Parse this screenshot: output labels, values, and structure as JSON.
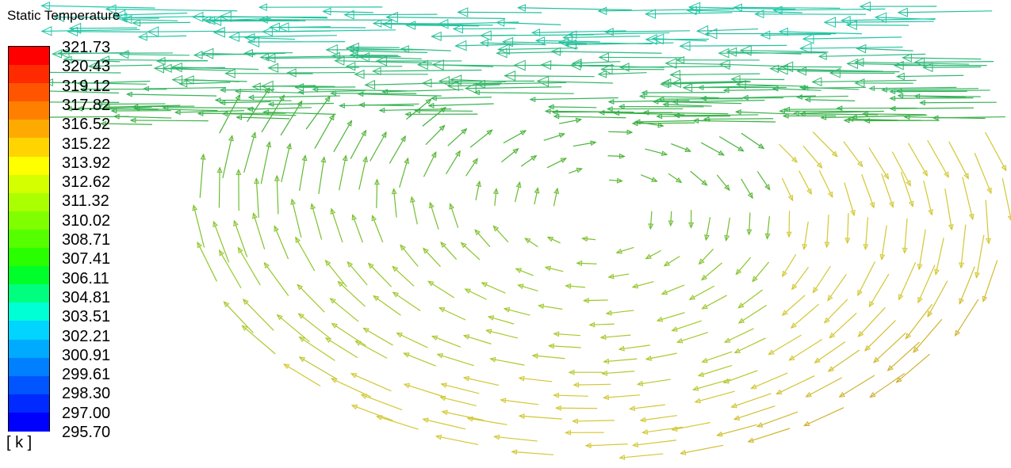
{
  "legend": {
    "title": "Static Temperature",
    "unit": "[ k ]",
    "tick_labels": [
      "321.73",
      "320.43",
      "319.12",
      "317.82",
      "316.52",
      "315.22",
      "313.92",
      "312.62",
      "311.32",
      "310.02",
      "308.71",
      "307.41",
      "306.11",
      "304.81",
      "303.51",
      "302.21",
      "300.91",
      "299.61",
      "298.30",
      "297.00",
      "295.70"
    ],
    "band_colors": [
      "#ff0000",
      "#ff2a00",
      "#ff5500",
      "#ff7f00",
      "#ffaa00",
      "#ffd400",
      "#ffff00",
      "#d4ff00",
      "#aaff00",
      "#7fff00",
      "#55ff00",
      "#2aff00",
      "#00ff2a",
      "#00ff7f",
      "#00ffd4",
      "#00d4ff",
      "#00aaff",
      "#007fff",
      "#0055ff",
      "#002aff",
      "#0000ff"
    ]
  }
}
